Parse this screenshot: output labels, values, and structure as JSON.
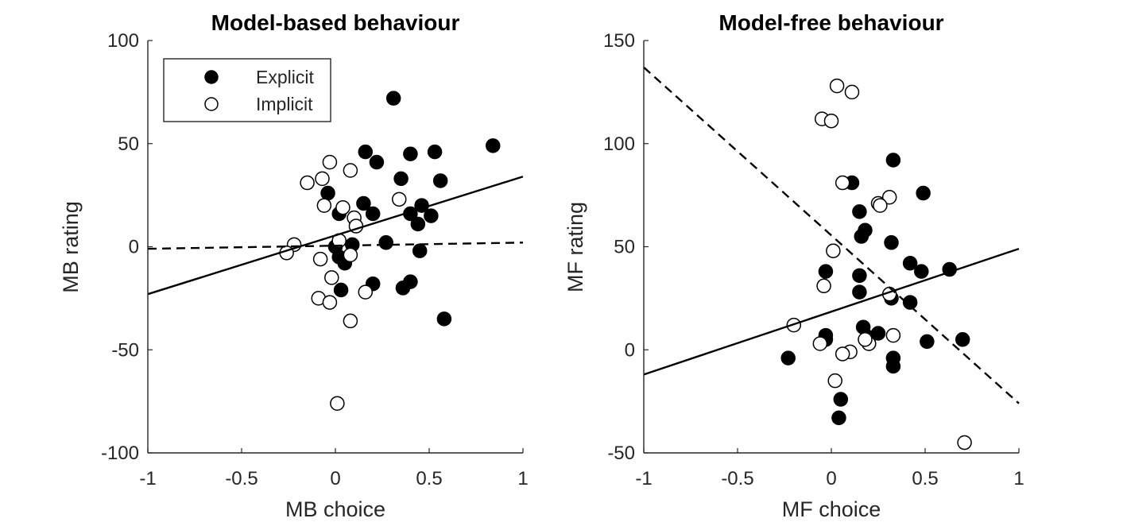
{
  "chart_data": [
    {
      "type": "scatter",
      "title": "Model-based behaviour",
      "xlabel": "MB choice",
      "ylabel": "MB rating",
      "xlim": [
        -1,
        1
      ],
      "ylim": [
        -100,
        100
      ],
      "xticks": [
        -1,
        -0.5,
        0,
        0.5,
        1
      ],
      "xtick_labels": [
        "-1",
        "-0.5",
        "0",
        "0.5",
        "1"
      ],
      "yticks": [
        -100,
        -50,
        0,
        50,
        100
      ],
      "ytick_labels": [
        "-100",
        "-50",
        "0",
        "50",
        "100"
      ],
      "legend": {
        "position": "top-left",
        "entries": [
          "Explicit",
          "Implicit"
        ]
      },
      "series": [
        {
          "name": "Explicit",
          "marker": "filled-circle",
          "fit_line": {
            "style": "solid",
            "x": [
              -1,
              1
            ],
            "y": [
              -23,
              34
            ]
          },
          "points": [
            [
              -0.04,
              26
            ],
            [
              0.02,
              16
            ],
            [
              0.15,
              21
            ],
            [
              0.2,
              16
            ],
            [
              0.16,
              46
            ],
            [
              0.22,
              41
            ],
            [
              0.31,
              72
            ],
            [
              0.35,
              33
            ],
            [
              0.4,
              45
            ],
            [
              0.53,
              46
            ],
            [
              0.56,
              32
            ],
            [
              0.44,
              11
            ],
            [
              0.46,
              20
            ],
            [
              0.4,
              16
            ],
            [
              0.51,
              15
            ],
            [
              0.84,
              49
            ],
            [
              0.27,
              2
            ],
            [
              0.09,
              1
            ],
            [
              0.0,
              0
            ],
            [
              0.02,
              -5
            ],
            [
              0.05,
              -8
            ],
            [
              0.45,
              -2
            ],
            [
              0.2,
              -18
            ],
            [
              0.36,
              -20
            ],
            [
              0.4,
              -17
            ],
            [
              0.03,
              -21
            ],
            [
              0.58,
              -35
            ]
          ]
        },
        {
          "name": "Implicit",
          "marker": "open-circle",
          "fit_line": {
            "style": "dashed",
            "x": [
              -1,
              1
            ],
            "y": [
              -1,
              2
            ]
          },
          "points": [
            [
              -0.03,
              41
            ],
            [
              0.08,
              37
            ],
            [
              -0.07,
              33
            ],
            [
              -0.15,
              31
            ],
            [
              -0.06,
              20
            ],
            [
              0.04,
              19
            ],
            [
              0.1,
              14
            ],
            [
              0.11,
              10
            ],
            [
              0.34,
              23
            ],
            [
              0.02,
              3
            ],
            [
              0.08,
              -4
            ],
            [
              -0.22,
              1
            ],
            [
              -0.26,
              -3
            ],
            [
              -0.08,
              -6
            ],
            [
              -0.02,
              -15
            ],
            [
              -0.09,
              -25
            ],
            [
              0.16,
              -22
            ],
            [
              -0.03,
              -27
            ],
            [
              0.08,
              -36
            ],
            [
              0.01,
              -76
            ]
          ]
        }
      ]
    },
    {
      "type": "scatter",
      "title": "Model-free behaviour",
      "xlabel": "MF choice",
      "ylabel": "MF rating",
      "xlim": [
        -1,
        1
      ],
      "ylim": [
        -50,
        150
      ],
      "xticks": [
        -1,
        -0.5,
        0,
        0.5,
        1
      ],
      "xtick_labels": [
        "-1",
        "-0.5",
        "0",
        "0.5",
        "1"
      ],
      "yticks": [
        -50,
        0,
        50,
        100,
        150
      ],
      "ytick_labels": [
        "-50",
        "0",
        "50",
        "100",
        "150"
      ],
      "series": [
        {
          "name": "Explicit",
          "marker": "filled-circle",
          "fit_line": {
            "style": "solid",
            "x": [
              -1,
              1
            ],
            "y": [
              -12,
              49
            ]
          },
          "points": [
            [
              0.11,
              81
            ],
            [
              0.33,
              92
            ],
            [
              0.49,
              76
            ],
            [
              0.15,
              67
            ],
            [
              0.18,
              58
            ],
            [
              0.16,
              55
            ],
            [
              0.32,
              52
            ],
            [
              0.42,
              42
            ],
            [
              0.48,
              38
            ],
            [
              0.63,
              39
            ],
            [
              -0.03,
              38
            ],
            [
              0.15,
              36
            ],
            [
              0.15,
              28
            ],
            [
              0.32,
              25
            ],
            [
              0.42,
              23
            ],
            [
              0.17,
              11
            ],
            [
              -0.03,
              7
            ],
            [
              0.2,
              6
            ],
            [
              0.25,
              8
            ],
            [
              -0.03,
              5
            ],
            [
              0.2,
              3
            ],
            [
              0.51,
              4
            ],
            [
              0.7,
              5
            ],
            [
              -0.23,
              -4
            ],
            [
              0.33,
              -4
            ],
            [
              0.33,
              -8
            ],
            [
              0.05,
              -24
            ],
            [
              0.04,
              -33
            ]
          ]
        },
        {
          "name": "Implicit",
          "marker": "open-circle",
          "fit_line": {
            "style": "dashed",
            "x": [
              -1,
              1
            ],
            "y": [
              137,
              -26
            ]
          },
          "points": [
            [
              0.03,
              128
            ],
            [
              0.11,
              125
            ],
            [
              -0.05,
              112
            ],
            [
              0.0,
              111
            ],
            [
              0.06,
              81
            ],
            [
              0.31,
              74
            ],
            [
              0.25,
              71
            ],
            [
              0.26,
              70
            ],
            [
              0.01,
              48
            ],
            [
              -0.04,
              31
            ],
            [
              0.31,
              27
            ],
            [
              -0.2,
              12
            ],
            [
              0.33,
              7
            ],
            [
              -0.06,
              3
            ],
            [
              0.2,
              3
            ],
            [
              0.18,
              5
            ],
            [
              0.1,
              -1
            ],
            [
              0.06,
              -2
            ],
            [
              0.02,
              -15
            ],
            [
              0.71,
              -45
            ]
          ]
        }
      ]
    }
  ]
}
